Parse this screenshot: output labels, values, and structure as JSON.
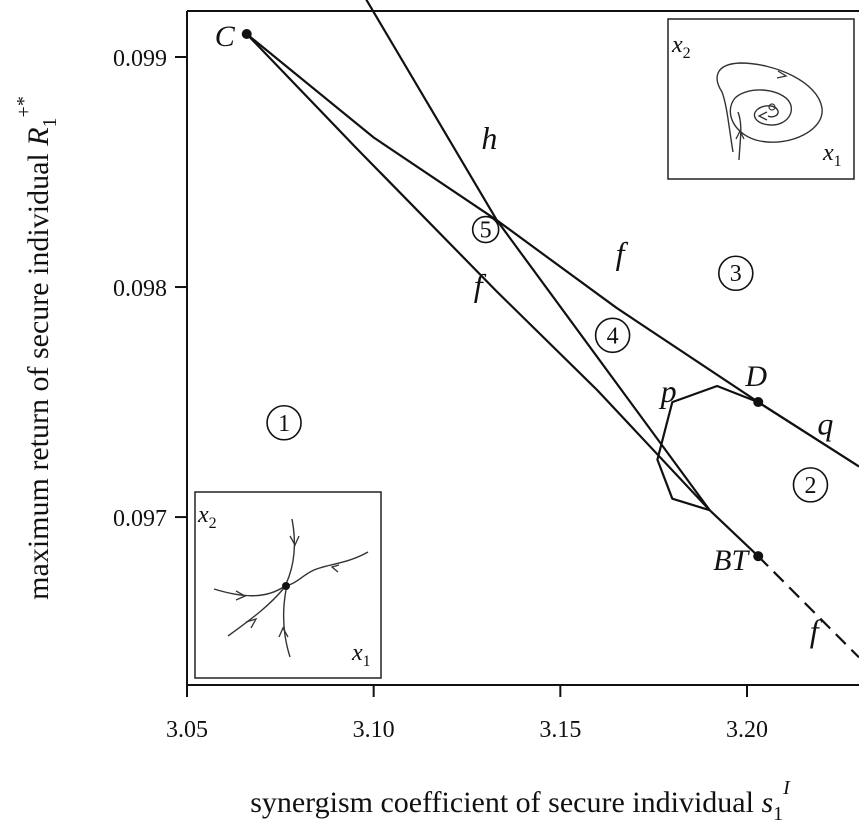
{
  "chart_data": {
    "type": "line",
    "xlabel": "synergism coefficient of secure individual",
    "xlabel_symbol": "s",
    "xlabel_sub": "1",
    "xlabel_sup": "I",
    "ylabel": "maximum return of secure individual",
    "ylabel_symbol": "R",
    "ylabel_sub": "1",
    "ylabel_sup": "+*",
    "xlim": [
      3.05,
      3.23
    ],
    "ylim": [
      0.09627,
      0.0992
    ],
    "x_ticks": [
      "3.05",
      "3.10",
      "3.15",
      "3.20"
    ],
    "y_ticks": [
      "0.097",
      "0.098",
      "0.099"
    ],
    "points": [
      {
        "name": "C",
        "x": 3.066,
        "y": 0.0991
      },
      {
        "name": "D",
        "x": 3.203,
        "y": 0.0975
      },
      {
        "name": "BT",
        "x": 3.203,
        "y": 0.09683
      }
    ],
    "series": [
      {
        "name": "f",
        "style": "solid",
        "x": [
          3.066,
          3.1,
          3.133,
          3.165,
          3.203,
          3.23
        ],
        "y": [
          0.0991,
          0.09865,
          0.09829,
          0.09791,
          0.0975,
          0.09722
        ]
      },
      {
        "name": "f",
        "style": "solid",
        "x": [
          3.066,
          3.095,
          3.133,
          3.16,
          3.19,
          3.203
        ],
        "y": [
          0.0991,
          0.09861,
          0.09798,
          0.09755,
          0.09703,
          0.09683
        ]
      },
      {
        "name": "f",
        "style": "dashed",
        "x": [
          3.203,
          3.23
        ],
        "y": [
          0.09683,
          0.09639
        ]
      },
      {
        "name": "h",
        "x": [
          3.098,
          3.133,
          3.19
        ],
        "y": [
          0.09925,
          0.09829,
          0.09703
        ]
      },
      {
        "name": "p",
        "x": [
          3.203,
          3.192,
          3.18,
          3.176,
          3.18,
          3.19
        ],
        "y": [
          0.0975,
          0.09757,
          0.0975,
          0.09725,
          0.09708,
          0.09703
        ]
      },
      {
        "name": "q",
        "x": [
          3.203,
          3.23
        ],
        "y": [
          0.0975,
          0.09722
        ]
      }
    ],
    "curve_labels": [
      {
        "text": "h",
        "x": 3.131,
        "y": 0.0986
      },
      {
        "text": "f",
        "x": 3.128,
        "y": 0.09796
      },
      {
        "text": "f",
        "x": 3.166,
        "y": 0.0981
      },
      {
        "text": "p",
        "x": 3.179,
        "y": 0.0975
      },
      {
        "text": "q",
        "x": 3.221,
        "y": 0.09736
      },
      {
        "text": "f",
        "x": 3.218,
        "y": 0.09646
      }
    ],
    "regions": [
      {
        "label": "1",
        "x": 3.076,
        "y": 0.09741
      },
      {
        "label": "2",
        "x": 3.217,
        "y": 0.09714
      },
      {
        "label": "3",
        "x": 3.197,
        "y": 0.09806
      },
      {
        "label": "4",
        "x": 3.164,
        "y": 0.09779
      },
      {
        "label": "5",
        "x": 3.13,
        "y": 0.09825
      }
    ],
    "insets": [
      {
        "name": "top-right",
        "x_label": "x",
        "x_sub": "1",
        "y_label": "x",
        "y_sub": "2"
      },
      {
        "name": "bottom-left",
        "x_label": "x",
        "x_sub": "1",
        "y_label": "x",
        "y_sub": "2"
      }
    ],
    "grid": false,
    "legend": "none"
  }
}
